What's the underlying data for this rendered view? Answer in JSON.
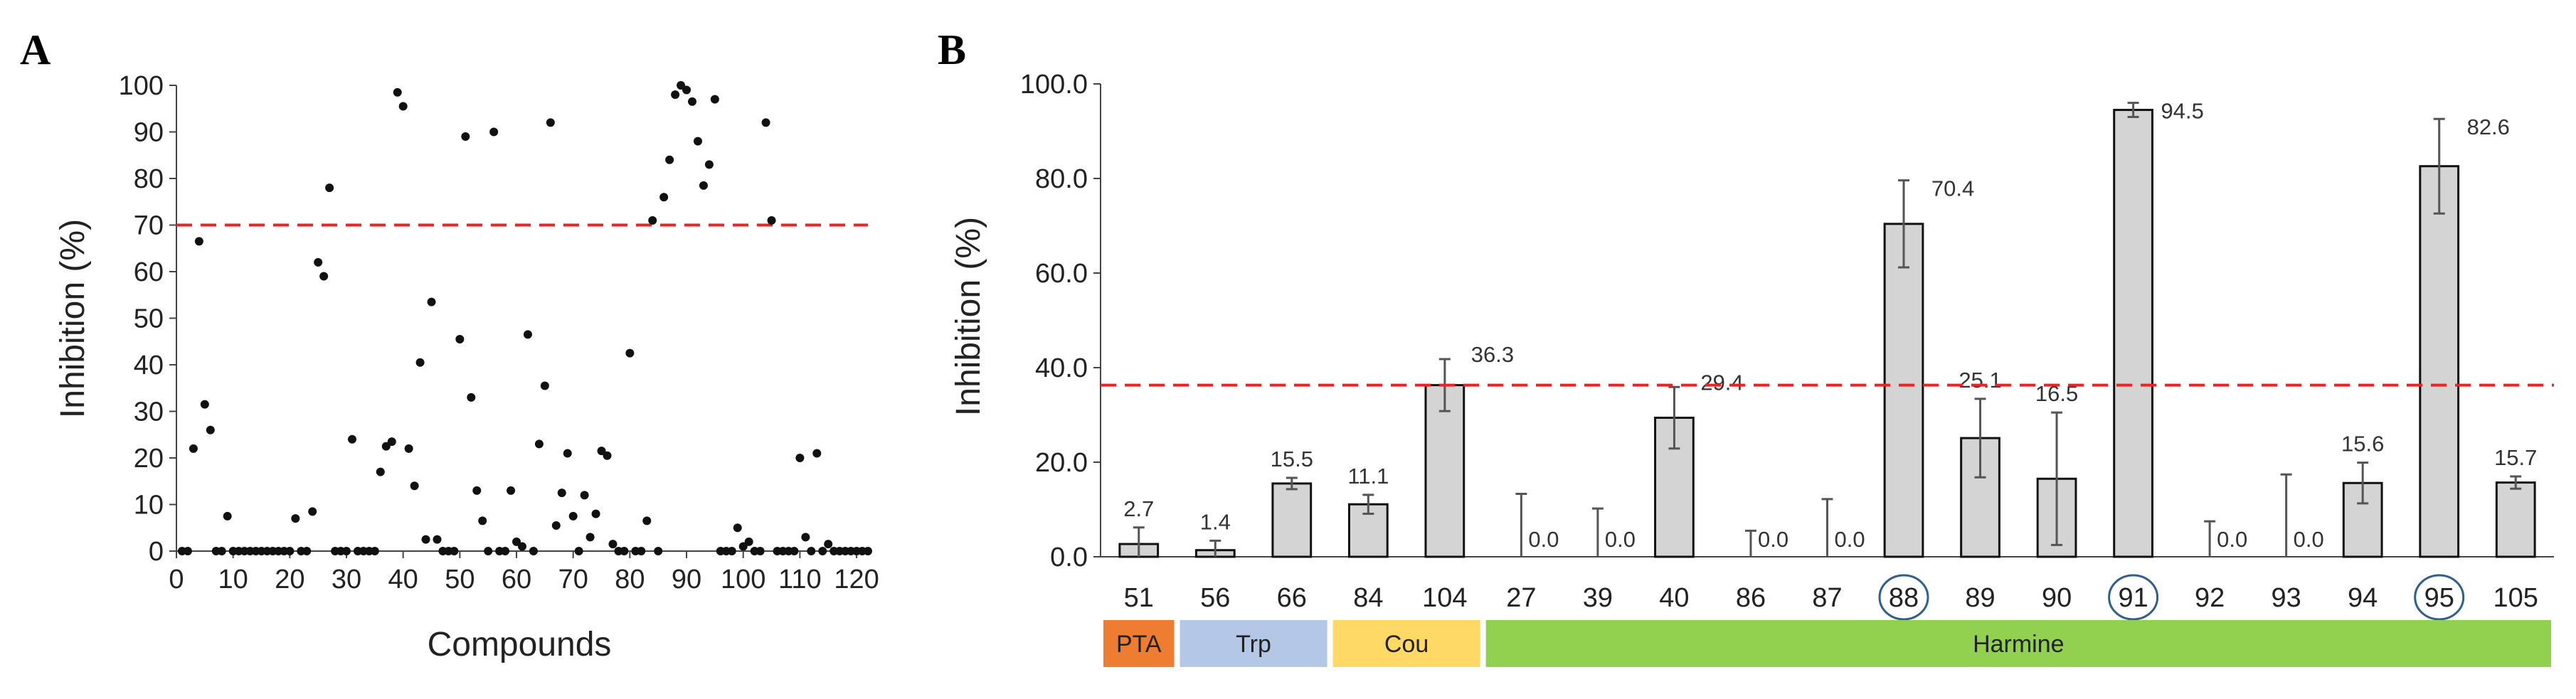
{
  "panel_a_label": "A",
  "panel_b_label": "B",
  "chart_data": [
    {
      "type": "scatter",
      "panel": "A",
      "xlabel": "Compounds",
      "ylabel": "Inhibition (%)",
      "xlim": [
        0,
        122
      ],
      "ylim": [
        0,
        100
      ],
      "xticks": [
        "0",
        "10",
        "20",
        "30",
        "40",
        "50",
        "60",
        "70",
        "80",
        "90",
        "100",
        "110",
        "120"
      ],
      "yticks": [
        "0",
        "10",
        "20",
        "30",
        "40",
        "50",
        "60",
        "70",
        "80",
        "90",
        "100"
      ],
      "threshold": 70,
      "threshold_color": "#ee2222",
      "point_color": "#111111",
      "points": [
        [
          1,
          0
        ],
        [
          2,
          0
        ],
        [
          3,
          22
        ],
        [
          4,
          66.5
        ],
        [
          5,
          31.5
        ],
        [
          6,
          26
        ],
        [
          7,
          0
        ],
        [
          8,
          0
        ],
        [
          9,
          7.5
        ],
        [
          10,
          0
        ],
        [
          11,
          0
        ],
        [
          12,
          0
        ],
        [
          13,
          0
        ],
        [
          14,
          0
        ],
        [
          15,
          0
        ],
        [
          16,
          0
        ],
        [
          17,
          0
        ],
        [
          18,
          0
        ],
        [
          19,
          0
        ],
        [
          20,
          0
        ],
        [
          21,
          7
        ],
        [
          22,
          0
        ],
        [
          23,
          0
        ],
        [
          24,
          8.5
        ],
        [
          25,
          62
        ],
        [
          26,
          59
        ],
        [
          27,
          78
        ],
        [
          28,
          0
        ],
        [
          29,
          0
        ],
        [
          30,
          0
        ],
        [
          31,
          24
        ],
        [
          32,
          0
        ],
        [
          33,
          0
        ],
        [
          34,
          0
        ],
        [
          35,
          0
        ],
        [
          36,
          17
        ],
        [
          37,
          22.5
        ],
        [
          38,
          23.5
        ],
        [
          39,
          98.5
        ],
        [
          40,
          95.5
        ],
        [
          41,
          22
        ],
        [
          42,
          14
        ],
        [
          43,
          40.5
        ],
        [
          44,
          2.5
        ],
        [
          45,
          53.5
        ],
        [
          46,
          2.5
        ],
        [
          47,
          0
        ],
        [
          48,
          0
        ],
        [
          49,
          0
        ],
        [
          50,
          45.5
        ],
        [
          51,
          89
        ],
        [
          52,
          33
        ],
        [
          53,
          13
        ],
        [
          54,
          6.5
        ],
        [
          55,
          0
        ],
        [
          56,
          90
        ],
        [
          57,
          0
        ],
        [
          58,
          0
        ],
        [
          59,
          13
        ],
        [
          60,
          2
        ],
        [
          61,
          1
        ],
        [
          62,
          46.5
        ],
        [
          63,
          0
        ],
        [
          64,
          23
        ],
        [
          65,
          35.5
        ],
        [
          66,
          92
        ],
        [
          67,
          5.5
        ],
        [
          68,
          12.5
        ],
        [
          69,
          21
        ],
        [
          70,
          7.5
        ],
        [
          71,
          0
        ],
        [
          72,
          12
        ],
        [
          73,
          3
        ],
        [
          74,
          8
        ],
        [
          75,
          21.5
        ],
        [
          76,
          20.5
        ],
        [
          77,
          1.5
        ],
        [
          78,
          0
        ],
        [
          79,
          0
        ],
        [
          80,
          42.5
        ],
        [
          81,
          0
        ],
        [
          82,
          0
        ],
        [
          83,
          6.5
        ],
        [
          84,
          71
        ],
        [
          85,
          0
        ],
        [
          86,
          76
        ],
        [
          87,
          84
        ],
        [
          88,
          98
        ],
        [
          89,
          100
        ],
        [
          90,
          99
        ],
        [
          91,
          96.5
        ],
        [
          92,
          88
        ],
        [
          93,
          78.5
        ],
        [
          94,
          83
        ],
        [
          95,
          97
        ],
        [
          96,
          0
        ],
        [
          97,
          0
        ],
        [
          98,
          0
        ],
        [
          99,
          5
        ],
        [
          100,
          1
        ],
        [
          101,
          2
        ],
        [
          102,
          0
        ],
        [
          103,
          0
        ],
        [
          104,
          92
        ],
        [
          105,
          71
        ],
        [
          106,
          0
        ],
        [
          107,
          0
        ],
        [
          108,
          0
        ],
        [
          109,
          0
        ],
        [
          110,
          20
        ],
        [
          111,
          3
        ],
        [
          112,
          0
        ],
        [
          113,
          21
        ],
        [
          114,
          0
        ],
        [
          115,
          1.5
        ],
        [
          116,
          0
        ],
        [
          117,
          0
        ],
        [
          118,
          0
        ],
        [
          119,
          0
        ],
        [
          120,
          0
        ],
        [
          121,
          0
        ],
        [
          122,
          0
        ]
      ]
    },
    {
      "type": "bar",
      "panel": "B",
      "ylabel": "Inhibition (%)",
      "ylim": [
        0,
        100
      ],
      "yticks": [
        "0.0",
        "20.0",
        "40.0",
        "60.0",
        "80.0",
        "100.0"
      ],
      "threshold": 36.3,
      "threshold_color": "#ee2222",
      "bar_color": "#d4d4d4",
      "categories": [
        "51",
        "56",
        "66",
        "84",
        "104",
        "27",
        "39",
        "40",
        "86",
        "87",
        "88",
        "89",
        "90",
        "91",
        "92",
        "93",
        "94",
        "95",
        "105"
      ],
      "values": [
        2.7,
        1.4,
        15.5,
        11.1,
        36.3,
        0.0,
        0.0,
        29.4,
        0.0,
        0.0,
        70.4,
        25.1,
        16.5,
        94.5,
        0.0,
        0.0,
        15.6,
        82.6,
        15.7
      ],
      "value_labels": [
        "2.7",
        "1.4",
        "15.5",
        "11.1",
        "36.3",
        "0.0",
        "0.0",
        "29.4",
        "0.0",
        "0.0",
        "70.4",
        "25.1",
        "16.5",
        "94.5",
        "0.0",
        "0.0",
        "15.6",
        "82.6",
        "15.7"
      ],
      "errors": [
        3.5,
        2.0,
        1.2,
        2.0,
        5.5,
        13.3,
        10.2,
        6.5,
        5.5,
        12.2,
        9.2,
        8.3,
        14.0,
        1.5,
        7.5,
        17.4,
        4.3,
        10.0,
        1.3
      ],
      "circled": [
        "88",
        "91",
        "95"
      ],
      "circle_color": "#2f5f8f",
      "groups": [
        {
          "name": "PTA",
          "start": 0,
          "end": 0,
          "color": "#ef7d31"
        },
        {
          "name": "Trp",
          "start": 1,
          "end": 2,
          "color": "#b4c7e7"
        },
        {
          "name": "Cou",
          "start": 3,
          "end": 4,
          "color": "#ffd966"
        },
        {
          "name": "Harmine",
          "start": 5,
          "end": 18,
          "color": "#92d050"
        }
      ]
    }
  ]
}
